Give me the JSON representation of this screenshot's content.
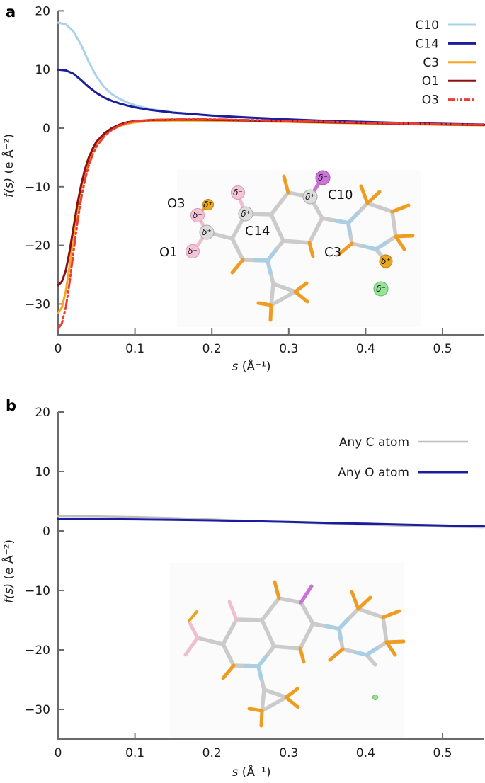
{
  "chart_data": [
    {
      "type": "line",
      "panel_label": "a",
      "xlabel_var": "s",
      "xlabel_rest": " (Å⁻¹)",
      "ylabel_var": "f(s)",
      "ylabel_rest": " (e Å⁻²)",
      "xlim": [
        0,
        0.554
      ],
      "ylim": [
        -35.3,
        20
      ],
      "xticks": [
        0,
        0.1,
        0.2,
        0.3,
        0.4,
        0.5
      ],
      "yticks": [
        20,
        10,
        0,
        -10,
        -20,
        -30
      ],
      "grid": false,
      "legend_position": "top-right",
      "series": [
        {
          "name": "C10",
          "color": "#a9d3e7",
          "width": 3,
          "points": [
            [
              0,
              18
            ],
            [
              0.01,
              17.7
            ],
            [
              0.02,
              16.5
            ],
            [
              0.03,
              14.2
            ],
            [
              0.04,
              11.3
            ],
            [
              0.05,
              8.8
            ],
            [
              0.06,
              7.0
            ],
            [
              0.07,
              5.8
            ],
            [
              0.08,
              5.0
            ],
            [
              0.09,
              4.4
            ],
            [
              0.1,
              3.9
            ],
            [
              0.12,
              3.25
            ],
            [
              0.15,
              2.7
            ],
            [
              0.18,
              2.35
            ],
            [
              0.2,
              2.15
            ],
            [
              0.25,
              1.75
            ],
            [
              0.3,
              1.45
            ],
            [
              0.35,
              1.2
            ],
            [
              0.4,
              1.0
            ],
            [
              0.45,
              0.85
            ],
            [
              0.5,
              0.72
            ],
            [
              0.554,
              0.6
            ]
          ]
        },
        {
          "name": "C14",
          "color": "#1c1c9c",
          "width": 3,
          "points": [
            [
              0,
              10
            ],
            [
              0.01,
              9.85
            ],
            [
              0.02,
              9.3
            ],
            [
              0.03,
              8.2
            ],
            [
              0.04,
              7.0
            ],
            [
              0.05,
              6.0
            ],
            [
              0.06,
              5.2
            ],
            [
              0.07,
              4.65
            ],
            [
              0.08,
              4.2
            ],
            [
              0.09,
              3.85
            ],
            [
              0.1,
              3.55
            ],
            [
              0.12,
              3.1
            ],
            [
              0.15,
              2.65
            ],
            [
              0.18,
              2.35
            ],
            [
              0.2,
              2.15
            ],
            [
              0.25,
              1.8
            ],
            [
              0.3,
              1.5
            ],
            [
              0.35,
              1.25
            ],
            [
              0.4,
              1.05
            ],
            [
              0.45,
              0.88
            ],
            [
              0.5,
              0.74
            ],
            [
              0.554,
              0.62
            ]
          ]
        },
        {
          "name": "C3",
          "color": "#f7a61f",
          "width": 3,
          "points": [
            [
              0,
              -31.5
            ],
            [
              0.005,
              -30.6
            ],
            [
              0.01,
              -27.8
            ],
            [
              0.015,
              -23.5
            ],
            [
              0.02,
              -18.6
            ],
            [
              0.025,
              -14.0
            ],
            [
              0.03,
              -10.3
            ],
            [
              0.035,
              -7.5
            ],
            [
              0.04,
              -5.4
            ],
            [
              0.045,
              -3.9
            ],
            [
              0.05,
              -2.7
            ],
            [
              0.06,
              -1.2
            ],
            [
              0.07,
              -0.25
            ],
            [
              0.08,
              0.35
            ],
            [
              0.09,
              0.75
            ],
            [
              0.1,
              1.0
            ],
            [
              0.12,
              1.22
            ],
            [
              0.15,
              1.3
            ],
            [
              0.18,
              1.3
            ],
            [
              0.2,
              1.28
            ],
            [
              0.25,
              1.18
            ],
            [
              0.3,
              1.05
            ],
            [
              0.35,
              0.92
            ],
            [
              0.4,
              0.8
            ],
            [
              0.45,
              0.68
            ],
            [
              0.5,
              0.58
            ],
            [
              0.554,
              0.48
            ]
          ]
        },
        {
          "name": "O1",
          "color": "#8c1010",
          "width": 3,
          "points": [
            [
              0,
              -26.8
            ],
            [
              0.005,
              -26.2
            ],
            [
              0.01,
              -24.3
            ],
            [
              0.015,
              -21.0
            ],
            [
              0.02,
              -17.0
            ],
            [
              0.025,
              -13.0
            ],
            [
              0.03,
              -9.7
            ],
            [
              0.035,
              -7.0
            ],
            [
              0.04,
              -5.0
            ],
            [
              0.045,
              -3.5
            ],
            [
              0.05,
              -2.3
            ],
            [
              0.06,
              -0.9
            ],
            [
              0.07,
              0.0
            ],
            [
              0.08,
              0.6
            ],
            [
              0.09,
              1.0
            ],
            [
              0.1,
              1.2
            ],
            [
              0.12,
              1.38
            ],
            [
              0.15,
              1.45
            ],
            [
              0.18,
              1.45
            ],
            [
              0.2,
              1.42
            ],
            [
              0.25,
              1.3
            ],
            [
              0.3,
              1.15
            ],
            [
              0.35,
              1.0
            ],
            [
              0.4,
              0.87
            ],
            [
              0.45,
              0.74
            ],
            [
              0.5,
              0.63
            ],
            [
              0.554,
              0.53
            ]
          ]
        },
        {
          "name": "O3",
          "color": "#ee3b33",
          "width": 3,
          "dash": "13 4 2.5 4 2.5 4",
          "points": [
            [
              0,
              -34.2
            ],
            [
              0.005,
              -33.3
            ],
            [
              0.01,
              -30.6
            ],
            [
              0.015,
              -26.3
            ],
            [
              0.02,
              -21.2
            ],
            [
              0.025,
              -16.2
            ],
            [
              0.03,
              -12.0
            ],
            [
              0.035,
              -8.8
            ],
            [
              0.04,
              -6.3
            ],
            [
              0.045,
              -4.5
            ],
            [
              0.05,
              -3.1
            ],
            [
              0.06,
              -1.4
            ],
            [
              0.07,
              -0.3
            ],
            [
              0.08,
              0.45
            ],
            [
              0.09,
              0.9
            ],
            [
              0.1,
              1.15
            ],
            [
              0.12,
              1.4
            ],
            [
              0.15,
              1.5
            ],
            [
              0.18,
              1.52
            ],
            [
              0.2,
              1.5
            ],
            [
              0.25,
              1.38
            ],
            [
              0.3,
              1.22
            ],
            [
              0.35,
              1.07
            ],
            [
              0.4,
              0.93
            ],
            [
              0.45,
              0.8
            ],
            [
              0.5,
              0.68
            ],
            [
              0.554,
              0.58
            ]
          ]
        }
      ]
    },
    {
      "type": "line",
      "panel_label": "b",
      "xlabel_var": "s",
      "xlabel_rest": " (Å⁻¹)",
      "ylabel_var": "f(s)",
      "ylabel_rest": " (e Å⁻²)",
      "xlim": [
        0,
        0.554
      ],
      "ylim": [
        -35,
        20
      ],
      "xticks": [
        0,
        0.1,
        0.2,
        0.3,
        0.4,
        0.5
      ],
      "yticks": [
        20,
        10,
        0,
        -10,
        -20,
        -30
      ],
      "grid": false,
      "legend_position": "top-right",
      "series": [
        {
          "name": "Any C atom",
          "color": "#bdbdbd",
          "width": 2.5,
          "points": [
            [
              0,
              2.5
            ],
            [
              0.05,
              2.47
            ],
            [
              0.1,
              2.37
            ],
            [
              0.15,
              2.2
            ],
            [
              0.2,
              1.97
            ],
            [
              0.25,
              1.72
            ],
            [
              0.3,
              1.47
            ],
            [
              0.35,
              1.24
            ],
            [
              0.4,
              1.03
            ],
            [
              0.45,
              0.86
            ],
            [
              0.5,
              0.71
            ],
            [
              0.554,
              0.58
            ]
          ]
        },
        {
          "name": "Any O atom",
          "color": "#1c1ca0",
          "width": 3,
          "points": [
            [
              0,
              2.0
            ],
            [
              0.05,
              1.99
            ],
            [
              0.1,
              1.95
            ],
            [
              0.15,
              1.88
            ],
            [
              0.2,
              1.78
            ],
            [
              0.25,
              1.65
            ],
            [
              0.3,
              1.51
            ],
            [
              0.35,
              1.36
            ],
            [
              0.4,
              1.21
            ],
            [
              0.45,
              1.06
            ],
            [
              0.5,
              0.92
            ],
            [
              0.554,
              0.78
            ]
          ]
        }
      ]
    }
  ],
  "molecules": {
    "delta_plus": "δ⁺",
    "delta_minus": "δ⁻",
    "a": {
      "labels": {
        "O3": "O3",
        "O1": "O1",
        "C14": "C14",
        "C10": "C10",
        "C3": "C3"
      }
    },
    "atom_colors": {
      "carbon_stick": "#cbcbcb",
      "hydrogen_tip": "#ef9d22",
      "oxygen_tip": "#f0bfcd",
      "nitrogen_tip": "#aacfe4",
      "fluorine_tip": "#c973d6",
      "sphere_pink": "#f3c3d8",
      "sphere_gold": "#eca61f",
      "sphere_gray": "#dcdcdc",
      "sphere_purple": "#cb74d8",
      "sphere_green": "#97e397"
    }
  }
}
